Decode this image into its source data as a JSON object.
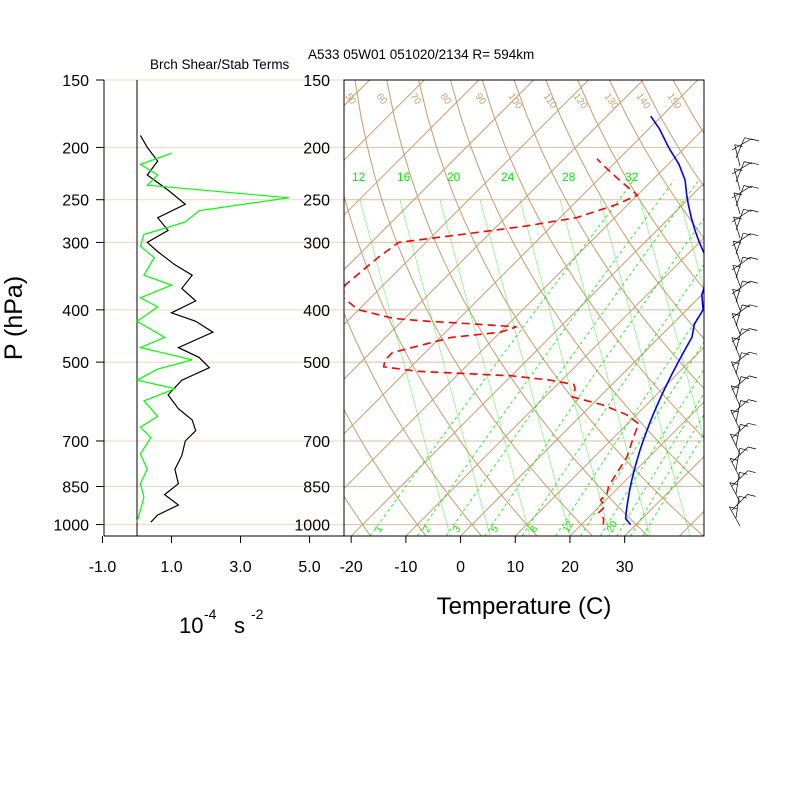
{
  "header": {
    "left_title": "Brch Shear/Stab Terms",
    "right_title": "A533 05W01 051020/2134 R= 594km"
  },
  "colors": {
    "background": "#ffffff",
    "grid_tan": "#c8a47c",
    "isobar_line": "#e9d8c0",
    "black_series": "#000000",
    "green_series": "#00ff00",
    "temperature": "#0000ff",
    "dewpoint": "#ff0000",
    "mixing_ratio": "#00ee00"
  },
  "chart_data": [
    {
      "type": "line",
      "title": "Brch Shear/Stab Terms",
      "ylabel": "P (hPa)",
      "xlabel": "10-4 s-2",
      "xlabel_base": "10",
      "xlabel_exp1": "-4",
      "xlabel_unit": "s",
      "xlabel_exp2": "-2",
      "y_scale": "log",
      "ylim": [
        1050,
        150
      ],
      "xlim": [
        -1.0,
        5.0
      ],
      "y_ticks": [
        150,
        200,
        250,
        300,
        400,
        500,
        700,
        850,
        1000
      ],
      "x_ticks": [
        -1.0,
        1.0,
        3.0,
        5.0
      ],
      "x_tick_labels": [
        "-1.0",
        "1.0",
        "3.0",
        "5.0"
      ],
      "zero_line": 0.0,
      "series": [
        {
          "color": "#000000",
          "points": [
            [
              0.1,
              190
            ],
            [
              0.3,
              200
            ],
            [
              0.6,
              212
            ],
            [
              0.3,
              225
            ],
            [
              0.9,
              240
            ],
            [
              1.4,
              255
            ],
            [
              0.6,
              270
            ],
            [
              0.9,
              285
            ],
            [
              0.3,
              300
            ],
            [
              0.6,
              312
            ],
            [
              1.1,
              330
            ],
            [
              1.6,
              345
            ],
            [
              1.3,
              365
            ],
            [
              1.7,
              385
            ],
            [
              1.0,
              405
            ],
            [
              1.7,
              420
            ],
            [
              2.2,
              440
            ],
            [
              1.2,
              470
            ],
            [
              1.8,
              490
            ],
            [
              2.1,
              512
            ],
            [
              1.3,
              540
            ],
            [
              0.9,
              575
            ],
            [
              1.2,
              610
            ],
            [
              1.6,
              640
            ],
            [
              1.7,
              670
            ],
            [
              1.4,
              700
            ],
            [
              1.3,
              745
            ],
            [
              1.1,
              790
            ],
            [
              1.2,
              840
            ],
            [
              0.8,
              880
            ],
            [
              1.2,
              920
            ],
            [
              0.6,
              960
            ],
            [
              0.4,
              990
            ]
          ]
        },
        {
          "color": "#00ff00",
          "points": [
            [
              1.0,
              205
            ],
            [
              0.1,
              215
            ],
            [
              0.6,
              225
            ],
            [
              0.3,
              235
            ],
            [
              4.4,
              248
            ],
            [
              1.8,
              262
            ],
            [
              1.4,
              275
            ],
            [
              0.2,
              290
            ],
            [
              0.1,
              305
            ],
            [
              0.5,
              320
            ],
            [
              0.2,
              345
            ],
            [
              1.0,
              360
            ],
            [
              0.1,
              380
            ],
            [
              0.6,
              395
            ],
            [
              0.0,
              420
            ],
            [
              0.8,
              450
            ],
            [
              0.1,
              470
            ],
            [
              1.6,
              495
            ],
            [
              0.6,
              515
            ],
            [
              0.0,
              540
            ],
            [
              1.1,
              560
            ],
            [
              0.2,
              590
            ],
            [
              0.6,
              630
            ],
            [
              0.1,
              660
            ],
            [
              0.4,
              690
            ],
            [
              0.1,
              740
            ],
            [
              0.3,
              790
            ],
            [
              0.1,
              840
            ],
            [
              0.2,
              890
            ],
            [
              0.1,
              940
            ],
            [
              0.0,
              990
            ]
          ]
        }
      ]
    },
    {
      "type": "line",
      "title": "A533 05W01 051020/2134 R= 594km",
      "xlabel": "Temperature (C)",
      "ylabel": "P (hPa)",
      "subtype": "skew-T log-P",
      "y_scale": "log",
      "ylim": [
        1050,
        150
      ],
      "xlim_at_1000hPa": [
        -23,
        42
      ],
      "x_ticks": [
        -20,
        -10,
        0,
        10,
        20,
        30
      ],
      "y_ticks": [
        150,
        200,
        250,
        300,
        400,
        500,
        700,
        850,
        1000
      ],
      "mixing_ratio_labels_top": [
        "12",
        "16",
        "20",
        "24",
        "28",
        "32"
      ],
      "mixing_ratio_labels_bottom": [
        "1",
        "2",
        "3",
        "5",
        "8",
        "12",
        "20"
      ],
      "isotherm_labels": [
        "50",
        "60",
        "70",
        "80",
        "90",
        "100",
        "110",
        "120",
        "130",
        "140",
        "150"
      ],
      "series": [
        {
          "name": "",
          "color": "#0000ff",
          "style": "solid",
          "points": [
            [
              29,
              1000
            ],
            [
              27,
              975
            ],
            [
              26,
              950
            ],
            [
              25,
              925
            ],
            [
              24,
              900
            ],
            [
              23,
              875
            ],
            [
              22,
              850
            ],
            [
              21,
              825
            ],
            [
              20,
              800
            ],
            [
              19,
              775
            ],
            [
              18,
              750
            ],
            [
              17,
              725
            ],
            [
              16,
              700
            ],
            [
              15,
              675
            ],
            [
              14,
              650
            ],
            [
              13,
              625
            ],
            [
              12,
              600
            ],
            [
              11,
              575
            ],
            [
              10,
              550
            ],
            [
              9,
              525
            ],
            [
              8,
              500
            ],
            [
              7,
              475
            ],
            [
              6,
              450
            ],
            [
              4,
              425
            ],
            [
              3,
              400
            ],
            [
              0,
              375
            ],
            [
              -2,
              350
            ],
            [
              -5,
              325
            ],
            [
              -8,
              310
            ],
            [
              -10,
              300
            ],
            [
              -13,
              285
            ],
            [
              -16,
              270
            ],
            [
              -19,
              255
            ],
            [
              -21,
              245
            ],
            [
              -24,
              230
            ],
            [
              -28,
              215
            ],
            [
              -33,
              200
            ],
            [
              -38,
              185
            ],
            [
              -42,
              175
            ]
          ]
        },
        {
          "name": "",
          "color": "#ff0000",
          "style": "dashed",
          "points": [
            [
              24,
              1000
            ],
            [
              23,
              975
            ],
            [
              21,
              950
            ],
            [
              21,
              925
            ],
            [
              19,
              900
            ],
            [
              19,
              875
            ],
            [
              18,
              850
            ],
            [
              17,
              800
            ],
            [
              16,
              750
            ],
            [
              14,
              700
            ],
            [
              12,
              650
            ],
            [
              8,
              625
            ],
            [
              2,
              600
            ],
            [
              -5,
              580
            ],
            [
              -6,
              560
            ],
            [
              -7,
              550
            ],
            [
              -12,
              540
            ],
            [
              -20,
              530
            ],
            [
              -38,
              520
            ],
            [
              -45,
              510
            ],
            [
              -46,
              495
            ],
            [
              -46,
              480
            ],
            [
              -42,
              465
            ],
            [
              -38,
              450
            ],
            [
              -30,
              440
            ],
            [
              -28,
              430
            ],
            [
              -36,
              425
            ],
            [
              -45,
              420
            ],
            [
              -52,
              415
            ],
            [
              -60,
              400
            ],
            [
              -65,
              380
            ],
            [
              -67,
              360
            ],
            [
              -66,
              320
            ],
            [
              -65,
              300
            ],
            [
              -55,
              290
            ],
            [
              -45,
              280
            ],
            [
              -37,
              270
            ],
            [
              -32,
              255
            ],
            [
              -30,
              245
            ],
            [
              -32,
              240
            ],
            [
              -36,
              230
            ],
            [
              -40,
              220
            ],
            [
              -42,
              215
            ],
            [
              -44,
              210
            ]
          ]
        }
      ]
    }
  ]
}
